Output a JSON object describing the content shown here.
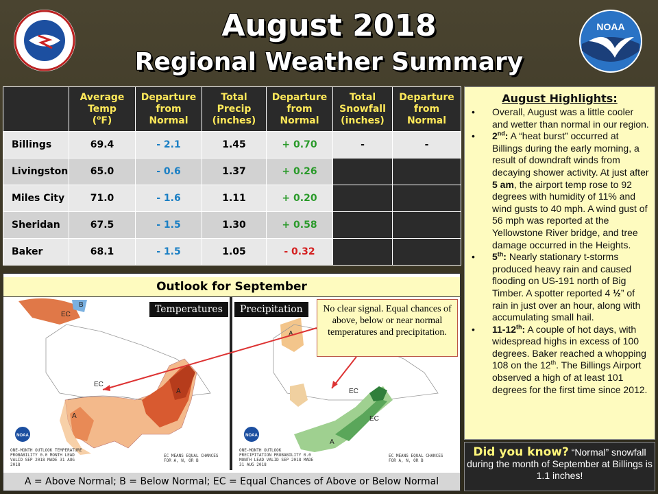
{
  "header": {
    "title_line1": "August 2018",
    "title_line2": "Regional Weather Summary",
    "left_logo_text": "NATIONAL WEATHER SERVICE",
    "right_logo_text": "NOAA"
  },
  "table": {
    "headers": [
      "",
      "Average Temp (°F)",
      "Departure from Normal",
      "Total Precip (inches)",
      "Departure from Normal",
      "Total Snowfall (inches)",
      "Departure from Normal"
    ],
    "rows": [
      {
        "city": "Billings",
        "temp": "69.4",
        "temp_dep": "- 2.1",
        "precip": "1.45",
        "precip_dep": "+ 0.70",
        "snow": "-",
        "snow_dep": "-"
      },
      {
        "city": "Livingston",
        "temp": "65.0",
        "temp_dep": "- 0.6",
        "precip": "1.37",
        "precip_dep": "+ 0.26",
        "snow": "",
        "snow_dep": ""
      },
      {
        "city": "Miles City",
        "temp": "71.0",
        "temp_dep": "- 1.6",
        "precip": "1.11",
        "precip_dep": "+ 0.20",
        "snow": "",
        "snow_dep": ""
      },
      {
        "city": "Sheridan",
        "temp": "67.5",
        "temp_dep": "- 1.5",
        "precip": "1.30",
        "precip_dep": "+ 0.58",
        "snow": "",
        "snow_dep": ""
      },
      {
        "city": "Baker",
        "temp": "68.1",
        "temp_dep": "- 1.5",
        "precip": "1.05",
        "precip_dep": "- 0.32",
        "snow": "",
        "snow_dep": ""
      }
    ]
  },
  "highlights": {
    "title": "August Highlights:",
    "item1": "Overall, August was a little cooler and wetter than normal in our region.",
    "item2_day": "2",
    "item2_sup": "nd",
    "item2_colon": ":",
    "item2_a": " A “heat burst” occurred at Billings during the early morning, a result of downdraft winds from decaying shower activity. At just after ",
    "item2_bold": "5 am",
    "item2_b": ", the airport temp rose to 92 degrees with humidity of 11% and wind gusts to 40 mph. A wind gust of 56 mph was reported at the Yellowstone River bridge, and tree damage occurred in the Heights.",
    "item3_day": "5",
    "item3_sup": "th",
    "item3_colon": ":",
    "item3_a": " Nearly stationary t-storms produced heavy rain and caused flooding on US-191 north of Big Timber. A spotter reported 4 ",
    "item3_frac": "½",
    "item3_b": "” of rain in just over an hour, along with accumulating small hail.",
    "item4_day": "11-12",
    "item4_sup": "th",
    "item4_colon": ":",
    "item4_a": " A couple of hot days, with widespread highs in excess of 100 degrees. Baker reached a whopping 108 on the 12",
    "item4_sup2": "th",
    "item4_b": ".  The Billings Airport observed a high of at least 101 degrees for the first time since 2012."
  },
  "did_you_know": {
    "label": "Did you know?",
    "text": " “Normal” snowfall during the month of September at Billings is 1.1 inches!"
  },
  "outlook": {
    "title": "Outlook for September",
    "temp_label": "Temperatures",
    "precip_label": "Precipitation",
    "callout": "No clear signal. Equal chances of above, below or near normal temperatures and precipitation.",
    "legend": "A = Above Normal;  B = Below Normal;  EC = Equal Chances of Above or Below Normal",
    "temp_map_caption": "ONE-MONTH OUTLOOK TEMPERATURE PROBABILITY 0.0 MONTH LEAD VALID SEP 2018 MADE 31 AUG 2018",
    "precip_map_caption": "ONE-MONTH OUTLOOK PRECIPITATION PROBABILITY 0.0 MONTH LEAD VALID SEP 2018 MADE 31 AUG 2018",
    "ec_note": "EC MEANS EQUAL CHANCES FOR A, N, OR B",
    "map_marks": {
      "ec": "EC",
      "above": "A",
      "below": "B"
    }
  },
  "colors": {
    "header_text": "#ffe95a",
    "temp_departure": "#1a7fc4",
    "positive": "#2a9a2a",
    "negative": "#d42020",
    "panel_bg": "#fefbbf"
  }
}
